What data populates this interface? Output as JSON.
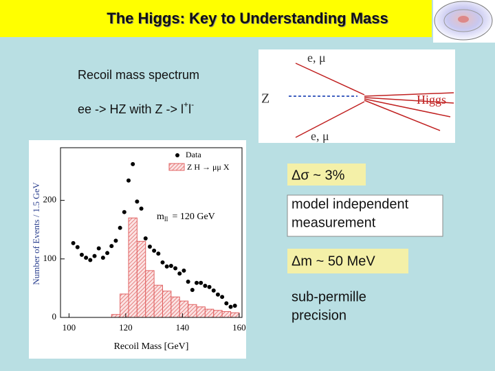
{
  "title": "The Higgs:  Key to Understanding Mass",
  "intro": {
    "recoil": "Recoil mass spectrum",
    "process": {
      "main": "ee -> HZ   with  Z -> l",
      "sup1": "+",
      "l2": "l",
      "sup2": "-"
    }
  },
  "diagram": {
    "top": "e, μ",
    "left": "Z",
    "right": "Higgs",
    "bottom": "e, μ"
  },
  "boxes": {
    "sigma": "Δσ ~ 3%",
    "model": [
      "model independent",
      "measurement"
    ],
    "mass": "Δm ~ 50 MeV",
    "precision": [
      "sub-permille",
      "precision"
    ]
  },
  "chart_data": {
    "type": "histogram",
    "y_label": "Number of Events / 1.5 GeV",
    "x_label": "Recoil Mass  [GeV]",
    "annotation": {
      "main": "m",
      "sub": "ll",
      "rest": "=  120  GeV"
    },
    "xlim": [
      97,
      161
    ],
    "ylim": [
      0,
      290
    ],
    "xticks": [
      100,
      120,
      140,
      160
    ],
    "yticks": [
      0,
      100,
      200
    ],
    "series": [
      {
        "name": "Data",
        "color": "#000000",
        "x": [
          101.5,
          103,
          104.5,
          106,
          107.5,
          109,
          110.5,
          112,
          113.5,
          115,
          116.5,
          118,
          119.5,
          121,
          122.5,
          124,
          125.5,
          127,
          128.5,
          130,
          131.5,
          133,
          134.5,
          136,
          137.5,
          139,
          140.5,
          142,
          143.5,
          145,
          146.5,
          148,
          149.5,
          151,
          152.5,
          154,
          155.5,
          157,
          158.5
        ],
        "values": [
          127,
          120,
          107,
          102,
          98,
          105,
          118,
          102,
          110,
          122,
          131,
          153,
          180,
          234,
          262,
          198,
          186,
          135,
          121,
          114,
          109,
          94,
          87,
          88,
          84,
          75,
          80,
          61,
          47,
          59,
          59,
          54,
          52,
          46,
          39,
          35,
          24,
          18,
          20
        ]
      },
      {
        "name": "Z H → μμ X",
        "color": "#e06060",
        "bins": [
          115,
          118,
          121,
          124,
          127,
          130,
          133,
          136,
          139,
          142,
          145,
          148,
          151,
          154,
          157,
          160
        ],
        "values": [
          5,
          40,
          170,
          130,
          80,
          55,
          45,
          35,
          28,
          22,
          18,
          14,
          12,
          10,
          8
        ]
      }
    ]
  }
}
